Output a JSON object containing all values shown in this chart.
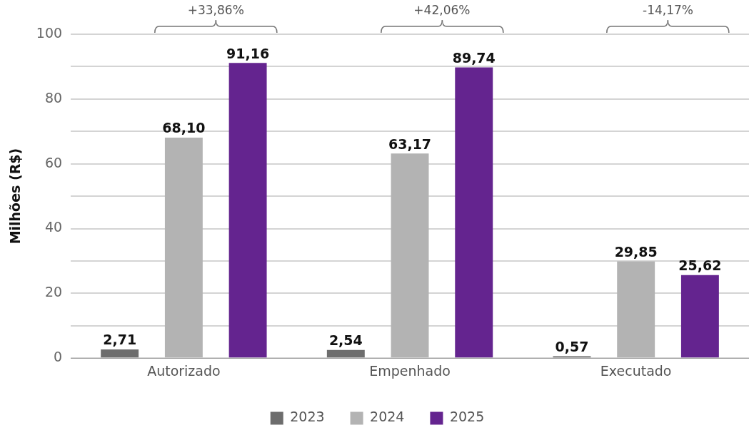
{
  "chart_data": {
    "type": "bar",
    "ylabel": "Milhões (R$)",
    "categories": [
      "Autorizado",
      "Empenhado",
      "Executado"
    ],
    "series": [
      {
        "name": "2023",
        "color": "#6d6d6d",
        "values": [
          2.71,
          2.54,
          0.57
        ]
      },
      {
        "name": "2024",
        "color": "#b3b3b3",
        "values": [
          68.1,
          63.17,
          29.85
        ]
      },
      {
        "name": "2025",
        "color": "#64248f",
        "values": [
          91.16,
          89.74,
          25.62
        ]
      }
    ],
    "value_labels": [
      [
        "2,71",
        "2,54",
        "0,57"
      ],
      [
        "68,10",
        "63,17",
        "29,85"
      ],
      [
        "91,16",
        "89,74",
        "25,62"
      ]
    ],
    "ylim": [
      0,
      100
    ],
    "yticks": [
      0,
      {
        "value": 10,
        "label": null
      },
      20,
      {
        "value": 30,
        "label": null
      },
      40,
      {
        "value": 50,
        "label": null
      },
      60,
      {
        "value": 70,
        "label": null
      },
      80,
      {
        "value": 90,
        "label": null
      },
      100
    ],
    "grid": "y",
    "legend": "bottom",
    "annotations": [
      "+33,86%",
      "+42,06%",
      "-14,17%"
    ]
  }
}
